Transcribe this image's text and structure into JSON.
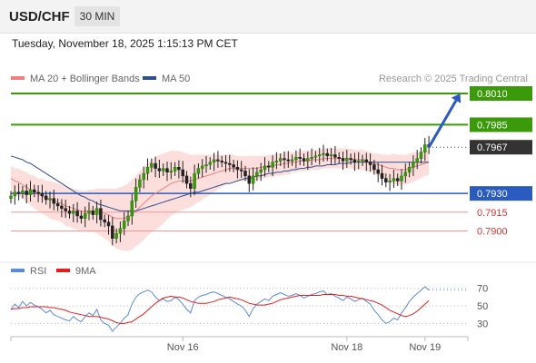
{
  "header": {
    "symbol": "USD/CHF",
    "timeframe": "30 MIN",
    "timestamp": "Tuesday, November 18, 2025 1:15:13 PM CET"
  },
  "chart_data": {
    "type": "candlestick",
    "legend": [
      {
        "label": "MA 20 + Bollinger Bands",
        "color": "#f08080"
      },
      {
        "label": "MA 50",
        "color": "#2f4f8f"
      }
    ],
    "copyright": "Research © 2025 Trading Central",
    "levels": [
      {
        "label": "0.8010",
        "value": 0.801,
        "kind": "resistance",
        "color": "#3a9a0a"
      },
      {
        "label": "0.7985",
        "value": 0.7985,
        "kind": "resistance",
        "color": "#3a9a0a"
      },
      {
        "label": "0.7967",
        "value": 0.7967,
        "kind": "last",
        "color": "#333333"
      },
      {
        "label": "0.7930",
        "value": 0.793,
        "kind": "pivot",
        "color": "#2a5bbf"
      },
      {
        "label": "0.7915",
        "value": 0.7915,
        "kind": "support",
        "color": "#e03030"
      },
      {
        "label": "0.7900",
        "value": 0.79,
        "kind": "support",
        "color": "#e03030"
      }
    ],
    "price_range": [
      0.788,
      0.8018
    ],
    "x_labels": [
      {
        "label": "Nov 16",
        "index": 44
      },
      {
        "label": "Nov 18",
        "index": 86
      },
      {
        "label": "Nov 19",
        "index": 106
      }
    ],
    "candle_count": 108,
    "arrow": {
      "from_index": 107,
      "from": 0.7967,
      "to_index": 115,
      "to": 0.801
    },
    "closes": [
      0.7928,
      0.7931,
      0.793,
      0.7932,
      0.7929,
      0.7933,
      0.7931,
      0.793,
      0.7928,
      0.7925,
      0.7926,
      0.7922,
      0.792,
      0.7918,
      0.7916,
      0.7914,
      0.7916,
      0.7912,
      0.791,
      0.7914,
      0.7916,
      0.7913,
      0.7918,
      0.7909,
      0.7907,
      0.7904,
      0.7894,
      0.7898,
      0.7902,
      0.7908,
      0.7912,
      0.7924,
      0.7935,
      0.7941,
      0.7946,
      0.7951,
      0.7954,
      0.795,
      0.7948,
      0.795,
      0.7947,
      0.7948,
      0.7951,
      0.7949,
      0.7944,
      0.7938,
      0.7934,
      0.7946,
      0.795,
      0.7952,
      0.7953,
      0.7955,
      0.7957,
      0.7956,
      0.7955,
      0.7954,
      0.7953,
      0.7951,
      0.7949,
      0.7948,
      0.7944,
      0.7938,
      0.7944,
      0.7947,
      0.7949,
      0.7952,
      0.7951,
      0.7955,
      0.7956,
      0.7958,
      0.7957,
      0.7956,
      0.7957,
      0.7959,
      0.7958,
      0.7956,
      0.7958,
      0.7959,
      0.796,
      0.7961,
      0.7962,
      0.796,
      0.7961,
      0.7959,
      0.7958,
      0.7956,
      0.7958,
      0.7957,
      0.7955,
      0.7956,
      0.7957,
      0.7955,
      0.7953,
      0.7949,
      0.7946,
      0.7942,
      0.7939,
      0.794,
      0.7942,
      0.794,
      0.7944,
      0.7947,
      0.7951,
      0.7955,
      0.7958,
      0.7963,
      0.7969,
      0.7967
    ],
    "ma20": [
      0.7942,
      0.794,
      0.7939,
      0.7937,
      0.7935,
      0.7933,
      0.7931,
      0.7929,
      0.7928,
      0.7926,
      0.7925,
      0.7924,
      0.7923,
      0.7922,
      0.792,
      0.7919,
      0.7918,
      0.7917,
      0.7916,
      0.7916,
      0.7916,
      0.7916,
      0.7916,
      0.7915,
      0.7914,
      0.7913,
      0.7911,
      0.791,
      0.791,
      0.791,
      0.7911,
      0.7913,
      0.7916,
      0.7919,
      0.7922,
      0.7925,
      0.7928,
      0.793,
      0.7932,
      0.7934,
      0.7936,
      0.7938,
      0.7939,
      0.794,
      0.794,
      0.794,
      0.794,
      0.7941,
      0.7942,
      0.7943,
      0.7944,
      0.7945,
      0.7946,
      0.7947,
      0.7948,
      0.7949,
      0.795,
      0.795,
      0.795,
      0.795,
      0.795,
      0.795,
      0.795,
      0.795,
      0.7951,
      0.7951,
      0.7952,
      0.7952,
      0.7953,
      0.7953,
      0.7954,
      0.7954,
      0.7955,
      0.7955,
      0.7956,
      0.7956,
      0.7956,
      0.7957,
      0.7957,
      0.7957,
      0.7958,
      0.7958,
      0.7958,
      0.7958,
      0.7958,
      0.7958,
      0.7958,
      0.7958,
      0.7957,
      0.7957,
      0.7957,
      0.7956,
      0.7955,
      0.7954,
      0.7953,
      0.7952,
      0.7951,
      0.795,
      0.795,
      0.7949,
      0.7949,
      0.7949,
      0.795,
      0.7951,
      0.7952,
      0.7953,
      0.7954,
      0.7955
    ],
    "ma50": [
      0.796,
      0.7959,
      0.7958,
      0.7957,
      0.7955,
      0.7954,
      0.7952,
      0.795,
      0.7948,
      0.7946,
      0.7944,
      0.7942,
      0.794,
      0.7938,
      0.7936,
      0.7934,
      0.7932,
      0.793,
      0.7928,
      0.7927,
      0.7925,
      0.7924,
      0.7922,
      0.7921,
      0.792,
      0.7919,
      0.7918,
      0.7917,
      0.7916,
      0.7916,
      0.7916,
      0.7916,
      0.7916,
      0.7917,
      0.7918,
      0.7919,
      0.792,
      0.7921,
      0.7922,
      0.7923,
      0.7924,
      0.7925,
      0.7926,
      0.7927,
      0.7928,
      0.7929,
      0.793,
      0.7931,
      0.7931,
      0.7932,
      0.7933,
      0.7934,
      0.7935,
      0.7936,
      0.7937,
      0.7938,
      0.7938,
      0.7939,
      0.794,
      0.7941,
      0.7942,
      0.7942,
      0.7943,
      0.7944,
      0.7944,
      0.7945,
      0.7946,
      0.7946,
      0.7947,
      0.7947,
      0.7948,
      0.7948,
      0.7949,
      0.7949,
      0.795,
      0.795,
      0.7951,
      0.7951,
      0.7952,
      0.7952,
      0.7952,
      0.7953,
      0.7953,
      0.7953,
      0.7954,
      0.7954,
      0.7954,
      0.7955,
      0.7955,
      0.7955,
      0.7955,
      0.7955,
      0.7955,
      0.7955,
      0.7955,
      0.7955,
      0.7955,
      0.7955,
      0.7955,
      0.7955,
      0.7955,
      0.7955,
      0.7955,
      0.7955,
      0.7955,
      0.7955,
      0.7955,
      0.7955
    ],
    "band_width": [
      0.001,
      0.001,
      0.0011,
      0.0011,
      0.0012,
      0.0012,
      0.0013,
      0.0013,
      0.0014,
      0.0014,
      0.0015,
      0.0015,
      0.0015,
      0.0015,
      0.0016,
      0.0016,
      0.0016,
      0.0016,
      0.0016,
      0.0016,
      0.0017,
      0.0017,
      0.0018,
      0.0019,
      0.002,
      0.0021,
      0.0023,
      0.0024,
      0.0025,
      0.0026,
      0.0027,
      0.0028,
      0.0028,
      0.0029,
      0.0029,
      0.0029,
      0.0029,
      0.0029,
      0.0029,
      0.0028,
      0.0027,
      0.0026,
      0.0025,
      0.0024,
      0.0023,
      0.0022,
      0.0021,
      0.002,
      0.0019,
      0.0018,
      0.0017,
      0.0016,
      0.0015,
      0.0014,
      0.0013,
      0.0012,
      0.0011,
      0.0011,
      0.001,
      0.001,
      0.001,
      0.001,
      0.001,
      0.001,
      0.0009,
      0.0009,
      0.0009,
      0.0009,
      0.0009,
      0.0009,
      0.0009,
      0.0009,
      0.0008,
      0.0008,
      0.0008,
      0.0008,
      0.0008,
      0.0008,
      0.0008,
      0.0008,
      0.0008,
      0.0008,
      0.0008,
      0.0008,
      0.0008,
      0.0008,
      0.0008,
      0.0008,
      0.0008,
      0.0008,
      0.0008,
      0.0008,
      0.0008,
      0.0008,
      0.0009,
      0.0009,
      0.001,
      0.0011,
      0.0012,
      0.0012,
      0.0012,
      0.0012,
      0.0012,
      0.0012,
      0.0011,
      0.0011,
      0.001,
      0.001
    ],
    "rsi": {
      "legend": [
        {
          "label": "RSI",
          "color": "#5b8bd9"
        },
        {
          "label": "9MA",
          "color": "#e02020"
        }
      ],
      "ticks": [
        {
          "label": "70",
          "value": 70
        },
        {
          "label": "50",
          "value": 50
        },
        {
          "label": "30",
          "value": 30
        }
      ],
      "range": [
        18,
        78
      ],
      "values": [
        46,
        52,
        48,
        55,
        50,
        54,
        51,
        49,
        46,
        42,
        45,
        40,
        38,
        36,
        34,
        33,
        38,
        34,
        32,
        38,
        42,
        39,
        46,
        34,
        30,
        28,
        21,
        26,
        30,
        36,
        40,
        52,
        60,
        64,
        66,
        68,
        66,
        60,
        56,
        58,
        55,
        56,
        60,
        57,
        52,
        46,
        42,
        56,
        60,
        62,
        63,
        65,
        66,
        64,
        62,
        60,
        58,
        55,
        52,
        50,
        45,
        38,
        47,
        52,
        55,
        58,
        56,
        61,
        63,
        65,
        63,
        61,
        62,
        64,
        62,
        59,
        61,
        63,
        64,
        66,
        67,
        63,
        64,
        61,
        59,
        56,
        60,
        58,
        55,
        57,
        59,
        55,
        52,
        45,
        40,
        34,
        30,
        32,
        36,
        34,
        42,
        48,
        55,
        60,
        64,
        68,
        72,
        68
      ],
      "ma9": [
        46,
        47,
        47,
        48,
        48,
        49,
        49,
        49,
        49,
        49,
        48,
        48,
        47,
        46,
        45,
        43,
        42,
        41,
        40,
        39,
        38,
        38,
        38,
        37,
        36,
        35,
        33,
        31,
        30,
        30,
        31,
        32,
        35,
        38,
        41,
        45,
        49,
        53,
        56,
        59,
        60,
        61,
        60,
        60,
        59,
        57,
        55,
        54,
        53,
        53,
        53,
        54,
        55,
        57,
        58,
        59,
        60,
        59,
        58,
        57,
        55,
        53,
        52,
        51,
        51,
        51,
        52,
        53,
        55,
        57,
        58,
        59,
        60,
        61,
        62,
        62,
        62,
        62,
        62,
        62,
        63,
        63,
        63,
        63,
        62,
        62,
        61,
        61,
        60,
        59,
        58,
        57,
        56,
        55,
        53,
        51,
        48,
        45,
        43,
        41,
        39,
        38,
        39,
        41,
        44,
        48,
        52,
        56
      ]
    }
  }
}
